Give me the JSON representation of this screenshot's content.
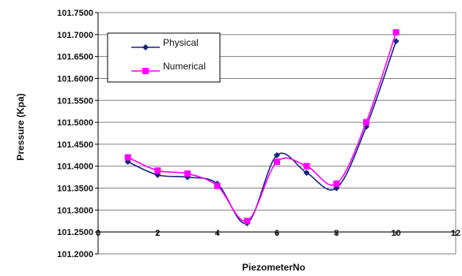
{
  "chart_data": {
    "type": "line",
    "xlabel": "PiezometerNo",
    "ylabel": "Pressure (Kpa)",
    "x": [
      1,
      2,
      3,
      4,
      5,
      6,
      7,
      8,
      9,
      10
    ],
    "xlim": [
      0,
      12
    ],
    "ylim": [
      101.2,
      101.75
    ],
    "x_ticks": [
      "0",
      "2",
      "4",
      "6",
      "8",
      "10",
      "12"
    ],
    "y_ticks": [
      "101.2000",
      "101.2500",
      "101.3000",
      "101.3500",
      "101.4000",
      "101.4500",
      "101.5000",
      "101.5500",
      "101.6000",
      "101.6500",
      "101.7000",
      "101.7500"
    ],
    "grid": "horizontal",
    "legend_position": "top-left inside",
    "series": [
      {
        "name": "Physical",
        "marker": "diamond",
        "color": "#1a237e",
        "values": [
          101.41,
          101.38,
          101.375,
          101.36,
          101.27,
          101.425,
          101.385,
          101.35,
          101.49,
          101.685
        ]
      },
      {
        "name": "Numerical",
        "marker": "square",
        "color": "#ff00ff",
        "values": [
          101.42,
          101.39,
          101.383,
          101.355,
          101.275,
          101.41,
          101.4,
          101.36,
          101.5,
          101.705
        ]
      }
    ]
  }
}
